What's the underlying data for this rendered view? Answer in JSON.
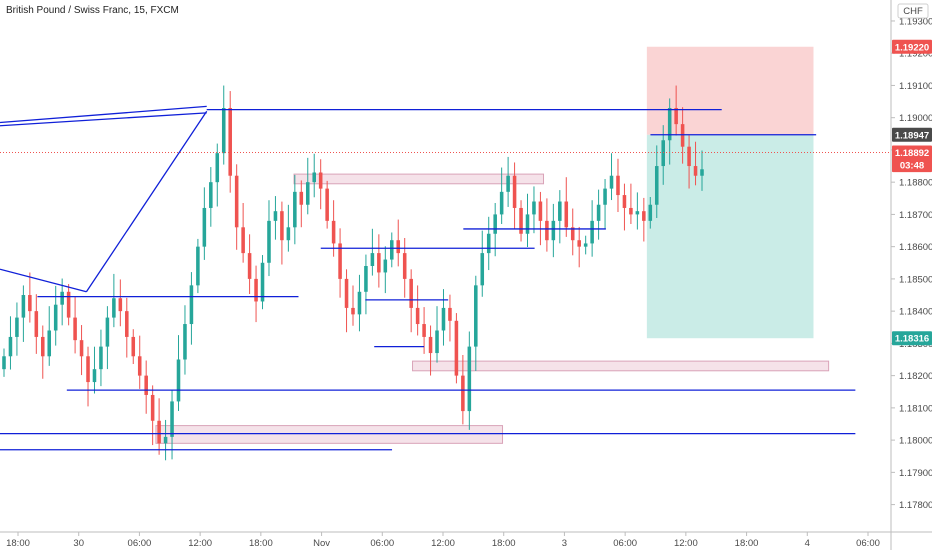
{
  "chart_data": {
    "type": "candlestick",
    "title": "British Pound / Swiss Franc, 15, FXCM",
    "currency": "CHF",
    "y_ticks": [
      "1.19300",
      "1.19200",
      "1.19100",
      "1.19000",
      "1.18900",
      "1.18800",
      "1.18700",
      "1.18600",
      "1.18500",
      "1.18400",
      "1.18300",
      "1.18200",
      "1.18100",
      "1.18000",
      "1.17900",
      "1.17800"
    ],
    "x_ticks": [
      "18:00",
      "30",
      "06:00",
      "12:00",
      "18:00",
      "Nov",
      "06:00",
      "12:00",
      "18:00",
      "3",
      "06:00",
      "12:00",
      "18:00",
      "4",
      "06:00"
    ],
    "ylim": [
      1.17715,
      1.19365
    ],
    "price_tags": [
      {
        "label": "1.19220",
        "value": 1.1922,
        "color": "#ef5350"
      },
      {
        "label": "1.18947",
        "value": 1.18947,
        "color": "#4a4a4a"
      },
      {
        "label": "1.18892",
        "value": 1.18892,
        "color": "#ef5350"
      },
      {
        "label": "03:48",
        "value": 1.18853,
        "color": "#ef5350"
      },
      {
        "label": "1.18316",
        "value": 1.18316,
        "color": "#26a69a"
      }
    ],
    "current_price": 1.18892,
    "colors": {
      "up": "#26a69a",
      "down": "#ef5350",
      "line": "#1020d8",
      "stop_zone": "#f8c6c6",
      "target_zone": "#b8e6df",
      "rect_zone": "#f3dbe4",
      "rect_border": "#d9a3b8"
    },
    "closes": [
      1.1826,
      1.1832,
      1.1838,
      1.1845,
      1.184,
      1.1832,
      1.1826,
      1.1834,
      1.1842,
      1.1846,
      1.1838,
      1.1831,
      1.1826,
      1.1818,
      1.1822,
      1.1829,
      1.1838,
      1.1844,
      1.184,
      1.1832,
      1.1826,
      1.182,
      1.1814,
      1.1806,
      1.1799,
      1.1801,
      1.1812,
      1.1825,
      1.1836,
      1.1848,
      1.186,
      1.1872,
      1.188,
      1.1889,
      1.1903,
      1.1882,
      1.1866,
      1.1858,
      1.185,
      1.1843,
      1.1855,
      1.1868,
      1.1871,
      1.1862,
      1.1866,
      1.1877,
      1.1873,
      1.188,
      1.1883,
      1.1878,
      1.1868,
      1.1861,
      1.185,
      1.1841,
      1.1839,
      1.1846,
      1.1854,
      1.1858,
      1.1852,
      1.1856,
      1.1862,
      1.1858,
      1.185,
      1.1841,
      1.1836,
      1.1832,
      1.1827,
      1.1834,
      1.1841,
      1.1837,
      1.182,
      1.1809,
      1.1829,
      1.1848,
      1.1858,
      1.1864,
      1.187,
      1.1877,
      1.1882,
      1.1872,
      1.1864,
      1.187,
      1.1874,
      1.1868,
      1.1862,
      1.1868,
      1.1874,
      1.1866,
      1.1862,
      1.186,
      1.1861,
      1.1868,
      1.1873,
      1.1878,
      1.1882,
      1.1876,
      1.1872,
      1.187,
      1.1871,
      1.1868,
      1.1873,
      1.1885,
      1.1893,
      1.1903,
      1.1898,
      1.1891,
      1.1885,
      1.1882,
      1.1884
    ],
    "lows_offset": 0.0008,
    "highs_offset": 0.0008,
    "horizontal_lines": [
      {
        "value": 1.19025,
        "from": 0.232,
        "to": 0.81
      },
      {
        "value": 1.18947,
        "from": 0.73,
        "to": 0.916
      },
      {
        "value": 1.18655,
        "from": 0.52,
        "to": 0.68
      },
      {
        "value": 1.18595,
        "from": 0.36,
        "to": 0.6
      },
      {
        "value": 1.18445,
        "from": 0.042,
        "to": 0.335
      },
      {
        "value": 1.18435,
        "from": 0.41,
        "to": 0.503
      },
      {
        "value": 1.1829,
        "from": 0.42,
        "to": 0.476
      },
      {
        "value": 1.18155,
        "from": 0.075,
        "to": 0.96
      },
      {
        "value": 1.1802,
        "from": 0.0,
        "to": 0.96
      },
      {
        "value": 1.1797,
        "from": 0.0,
        "to": 0.44
      }
    ],
    "zones": [
      {
        "type": "stop",
        "from": 0.726,
        "to": 0.913,
        "top": 1.1922,
        "bottom": 1.18947
      },
      {
        "type": "target",
        "from": 0.726,
        "to": 0.913,
        "top": 1.18947,
        "bottom": 1.18316
      },
      {
        "type": "rect",
        "from": 0.33,
        "to": 0.61,
        "top": 1.18825,
        "bottom": 1.18795
      },
      {
        "type": "rect",
        "from": 0.175,
        "to": 0.564,
        "top": 1.18045,
        "bottom": 1.1799
      },
      {
        "type": "rect",
        "from": 0.463,
        "to": 0.93,
        "top": 1.18245,
        "bottom": 1.18215
      }
    ]
  }
}
